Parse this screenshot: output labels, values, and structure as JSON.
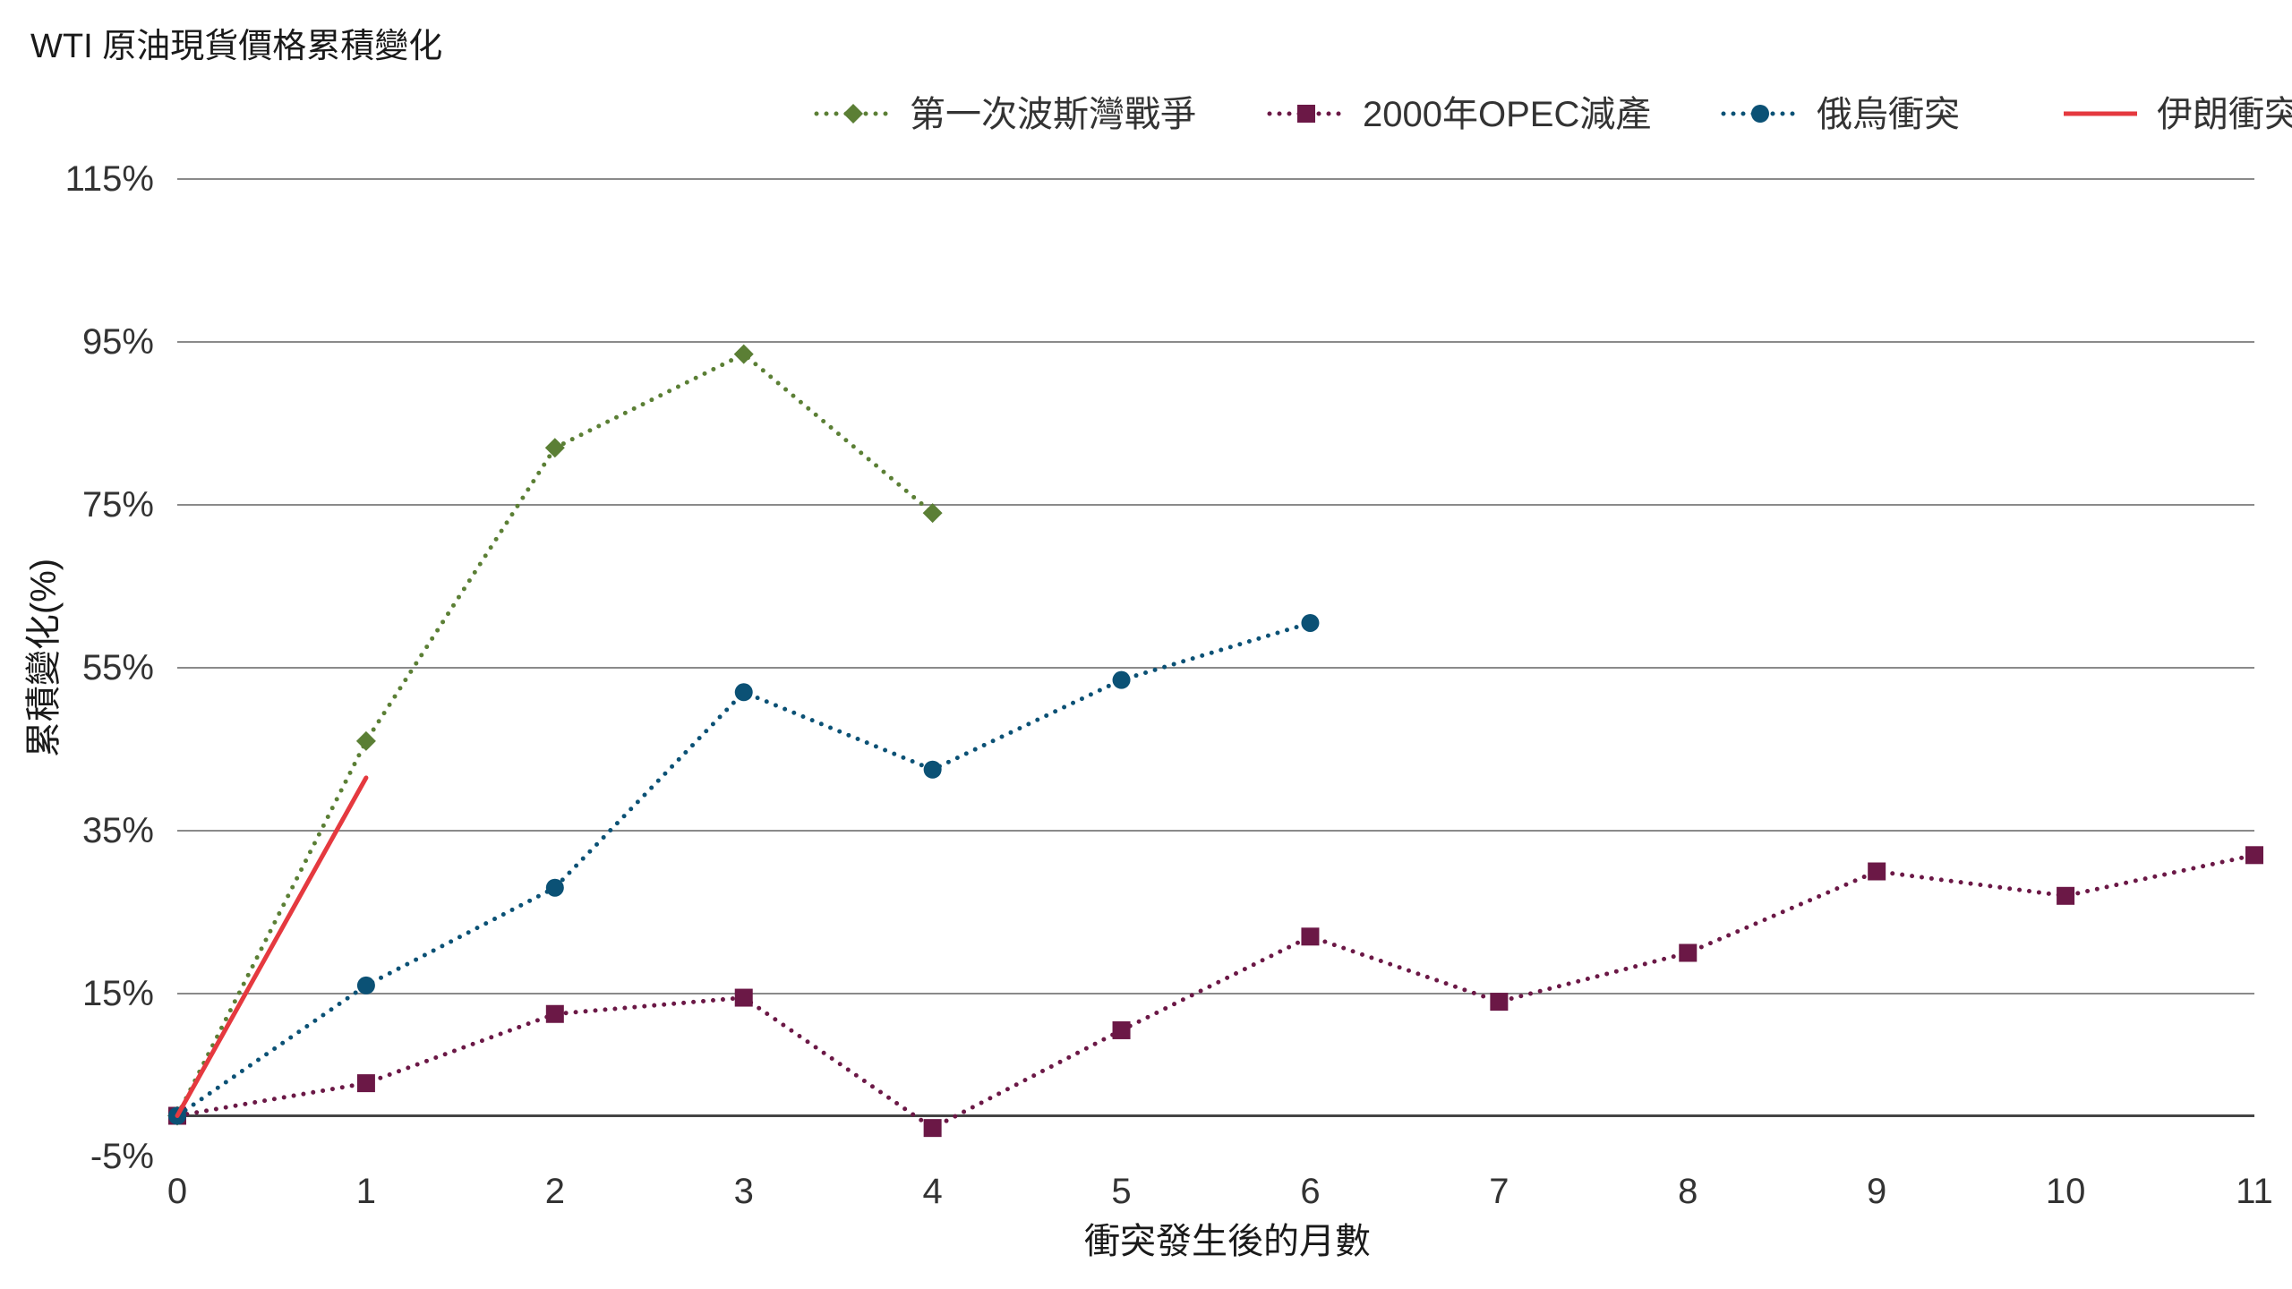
{
  "chart_data": {
    "type": "line",
    "title": "WTI 原油現貨價格累積變化",
    "xlabel": "衝突發生後的月數",
    "ylabel": "累積變化(%)",
    "x_ticks": [
      "0",
      "1",
      "2",
      "3",
      "4",
      "5",
      "6",
      "7",
      "8",
      "9",
      "10",
      "11"
    ],
    "y_ticks": [
      "-5%",
      "15%",
      "35%",
      "55%",
      "75%",
      "95%",
      "115%"
    ],
    "y_tick_values": [
      -5,
      15,
      35,
      55,
      75,
      95,
      115
    ],
    "xlim": [
      0,
      11
    ],
    "ylim": [
      -5,
      115
    ],
    "grid": true,
    "legend_position": "top-right",
    "series": [
      {
        "name": "第一次波斯灣戰爭",
        "color": "#5b7f35",
        "marker": "diamond",
        "line": "dotted",
        "x": [
          0,
          1,
          2,
          3,
          4
        ],
        "values": [
          0,
          46,
          82,
          93.5,
          74
        ]
      },
      {
        "name": "2000年OPEC減產",
        "color": "#6b1846",
        "marker": "square",
        "line": "dotted",
        "x": [
          0,
          1,
          2,
          3,
          4,
          5,
          6,
          7,
          8,
          9,
          10,
          11
        ],
        "values": [
          0,
          4,
          12.5,
          14.5,
          -1.5,
          10.5,
          22,
          14,
          20,
          30,
          27,
          32
        ]
      },
      {
        "name": "俄烏衝突",
        "color": "#0b5175",
        "marker": "circle",
        "line": "dotted",
        "x": [
          0,
          1,
          2,
          3,
          4,
          5,
          6
        ],
        "values": [
          0,
          16,
          28,
          52,
          42.5,
          53.5,
          60.5
        ]
      },
      {
        "name": "伊朗衝突",
        "color": "#e5393f",
        "marker": "none",
        "line": "solid",
        "x": [
          0,
          1
        ],
        "values": [
          0,
          41.5
        ]
      }
    ]
  }
}
